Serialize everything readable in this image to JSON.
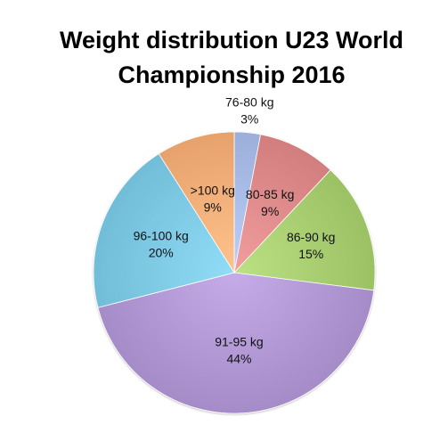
{
  "chart_data": {
    "type": "pie",
    "title": "Weight distribution U23 World Championship 2016",
    "slices": [
      {
        "label": "76-80 kg",
        "value": 3,
        "value_label": "3%",
        "color": "#a9bde8"
      },
      {
        "label": "80-85 kg",
        "value": 9,
        "value_label": "9%",
        "color": "#e08c8c"
      },
      {
        "label": "86-90 kg",
        "value": 15,
        "value_label": "15%",
        "color": "#a9cf72"
      },
      {
        "label": "91-95 kg",
        "value": 44,
        "value_label": "44%",
        "color": "#b39ad6"
      },
      {
        "label": "96-100 kg",
        "value": 20,
        "value_label": "20%",
        "color": "#7fcbe6"
      },
      {
        "label": ">100 kg",
        "value": 9,
        "value_label": "9%",
        "color": "#f5b07a"
      }
    ],
    "start_angle": "12 o'clock",
    "direction": "clockwise",
    "legend": "none",
    "labels": "inside slices"
  }
}
